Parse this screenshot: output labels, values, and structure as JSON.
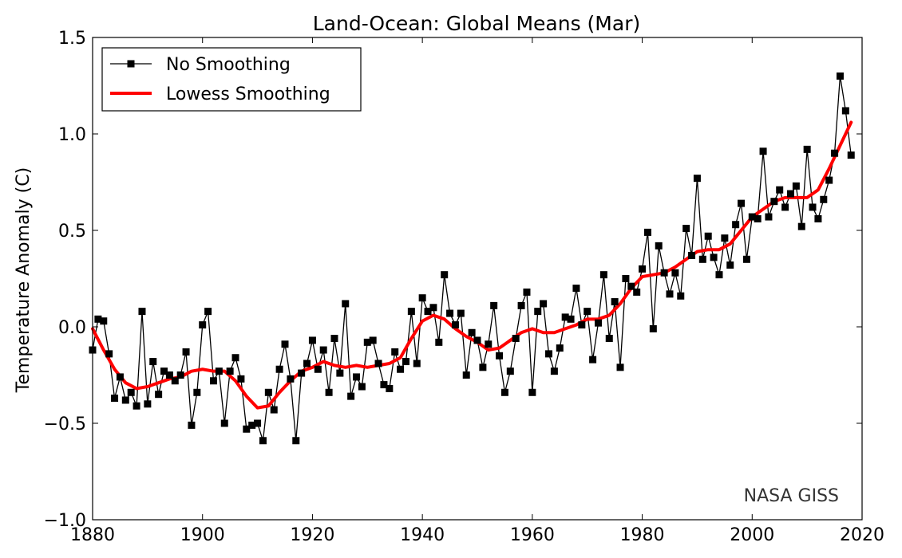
{
  "chart_data": {
    "type": "line",
    "title": "Land-Ocean: Global Means (Mar)",
    "xlabel": "",
    "ylabel": "Temperature Anomaly (C)",
    "xlim": [
      1880,
      2020
    ],
    "ylim": [
      -1.0,
      1.5
    ],
    "xticks": [
      1880,
      1900,
      1920,
      1940,
      1960,
      1980,
      2000,
      2020
    ],
    "xtick_labels": [
      "1880",
      "1900",
      "1920",
      "1940",
      "1960",
      "1980",
      "2000",
      "2020"
    ],
    "yticks": [
      -1.0,
      -0.5,
      0.0,
      0.5,
      1.0,
      1.5
    ],
    "ytick_labels": [
      "−1.0",
      "−0.5",
      "0.0",
      "0.5",
      "1.0",
      "1.5"
    ],
    "grid": false,
    "legend_position": "top-left",
    "annotation": "NASA GISS",
    "series": [
      {
        "name": "No Smoothing",
        "color": "#000000",
        "marker": "square",
        "x": [
          1880,
          1881,
          1882,
          1883,
          1884,
          1885,
          1886,
          1887,
          1888,
          1889,
          1890,
          1891,
          1892,
          1893,
          1894,
          1895,
          1896,
          1897,
          1898,
          1899,
          1900,
          1901,
          1902,
          1903,
          1904,
          1905,
          1906,
          1907,
          1908,
          1909,
          1910,
          1911,
          1912,
          1913,
          1914,
          1915,
          1916,
          1917,
          1918,
          1919,
          1920,
          1921,
          1922,
          1923,
          1924,
          1925,
          1926,
          1927,
          1928,
          1929,
          1930,
          1931,
          1932,
          1933,
          1934,
          1935,
          1936,
          1937,
          1938,
          1939,
          1940,
          1941,
          1942,
          1943,
          1944,
          1945,
          1946,
          1947,
          1948,
          1949,
          1950,
          1951,
          1952,
          1953,
          1954,
          1955,
          1956,
          1957,
          1958,
          1959,
          1960,
          1961,
          1962,
          1963,
          1964,
          1965,
          1966,
          1967,
          1968,
          1969,
          1970,
          1971,
          1972,
          1973,
          1974,
          1975,
          1976,
          1977,
          1978,
          1979,
          1980,
          1981,
          1982,
          1983,
          1984,
          1985,
          1986,
          1987,
          1988,
          1989,
          1990,
          1991,
          1992,
          1993,
          1994,
          1995,
          1996,
          1997,
          1998,
          1999,
          2000,
          2001,
          2002,
          2003,
          2004,
          2005,
          2006,
          2007,
          2008,
          2009,
          2010,
          2011,
          2012,
          2013,
          2014,
          2015,
          2016,
          2017,
          2018
        ],
        "values": [
          -0.12,
          0.04,
          0.03,
          -0.14,
          -0.37,
          -0.26,
          -0.38,
          -0.34,
          -0.41,
          0.08,
          -0.4,
          -0.18,
          -0.35,
          -0.23,
          -0.25,
          -0.28,
          -0.25,
          -0.13,
          -0.51,
          -0.34,
          0.01,
          0.08,
          -0.28,
          -0.23,
          -0.5,
          -0.23,
          -0.16,
          -0.27,
          -0.53,
          -0.51,
          -0.5,
          -0.59,
          -0.34,
          -0.43,
          -0.22,
          -0.09,
          -0.27,
          -0.59,
          -0.24,
          -0.19,
          -0.07,
          -0.22,
          -0.12,
          -0.34,
          -0.06,
          -0.24,
          0.12,
          -0.36,
          -0.26,
          -0.31,
          -0.08,
          -0.07,
          -0.19,
          -0.3,
          -0.32,
          -0.13,
          -0.22,
          -0.18,
          0.08,
          -0.19,
          0.15,
          0.08,
          0.1,
          -0.08,
          0.27,
          0.07,
          0.01,
          0.07,
          -0.25,
          -0.03,
          -0.07,
          -0.21,
          -0.09,
          0.11,
          -0.15,
          -0.34,
          -0.23,
          -0.06,
          0.11,
          0.18,
          -0.34,
          0.08,
          0.12,
          -0.14,
          -0.23,
          -0.11,
          0.05,
          0.04,
          0.2,
          0.01,
          0.08,
          -0.17,
          0.02,
          0.27,
          -0.06,
          0.13,
          -0.21,
          0.25,
          0.21,
          0.18,
          0.3,
          0.49,
          -0.01,
          0.42,
          0.28,
          0.17,
          0.28,
          0.16,
          0.51,
          0.37,
          0.77,
          0.35,
          0.47,
          0.36,
          0.27,
          0.46,
          0.32,
          0.53,
          0.64,
          0.35,
          0.57,
          0.56,
          0.91,
          0.57,
          0.65,
          0.71,
          0.62,
          0.69,
          0.73,
          0.52,
          0.92,
          0.62,
          0.56,
          0.66,
          0.76,
          0.9,
          1.3,
          1.12,
          0.89
        ]
      },
      {
        "name": "Lowess Smoothing",
        "color": "#ff0000",
        "marker": "none",
        "x": [
          1880,
          1882,
          1884,
          1886,
          1888,
          1890,
          1892,
          1894,
          1896,
          1898,
          1900,
          1902,
          1904,
          1906,
          1908,
          1910,
          1912,
          1914,
          1916,
          1918,
          1920,
          1922,
          1924,
          1926,
          1928,
          1930,
          1932,
          1934,
          1936,
          1938,
          1940,
          1942,
          1944,
          1946,
          1948,
          1950,
          1952,
          1954,
          1956,
          1958,
          1960,
          1962,
          1964,
          1966,
          1968,
          1970,
          1972,
          1974,
          1976,
          1978,
          1980,
          1982,
          1984,
          1986,
          1988,
          1990,
          1992,
          1994,
          1996,
          1998,
          2000,
          2002,
          2004,
          2006,
          2008,
          2010,
          2012,
          2014,
          2016,
          2018
        ],
        "values": [
          -0.01,
          -0.12,
          -0.22,
          -0.29,
          -0.32,
          -0.31,
          -0.29,
          -0.27,
          -0.26,
          -0.23,
          -0.22,
          -0.23,
          -0.23,
          -0.28,
          -0.36,
          -0.42,
          -0.41,
          -0.34,
          -0.28,
          -0.23,
          -0.21,
          -0.18,
          -0.2,
          -0.21,
          -0.2,
          -0.21,
          -0.2,
          -0.19,
          -0.16,
          -0.06,
          0.03,
          0.06,
          0.04,
          -0.01,
          -0.05,
          -0.08,
          -0.12,
          -0.11,
          -0.07,
          -0.03,
          -0.01,
          -0.03,
          -0.03,
          -0.01,
          0.01,
          0.04,
          0.04,
          0.06,
          0.12,
          0.2,
          0.26,
          0.27,
          0.28,
          0.31,
          0.35,
          0.39,
          0.4,
          0.4,
          0.43,
          0.5,
          0.57,
          0.61,
          0.65,
          0.67,
          0.67,
          0.67,
          0.71,
          0.82,
          0.94,
          1.06
        ]
      }
    ]
  }
}
